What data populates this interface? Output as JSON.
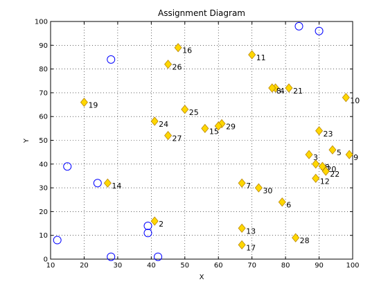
{
  "chart_data": {
    "type": "scatter",
    "title": "Assignment Diagram",
    "xlabel": "X",
    "ylabel": "Y",
    "xlim": [
      10,
      100
    ],
    "ylim": [
      0,
      100
    ],
    "xticks": [
      10,
      20,
      30,
      40,
      50,
      60,
      70,
      80,
      90,
      100
    ],
    "yticks": [
      0,
      10,
      20,
      30,
      40,
      50,
      60,
      70,
      80,
      90,
      100
    ],
    "grid": true,
    "series": [
      {
        "marker": "diamond",
        "color": "#FFD700",
        "edge_color": "#B8860B",
        "points": [
          {
            "label": "2",
            "x": 41,
            "y": 16
          },
          {
            "label": "3",
            "x": 87,
            "y": 44
          },
          {
            "label": "4",
            "x": 77,
            "y": 72
          },
          {
            "label": "5",
            "x": 94,
            "y": 46
          },
          {
            "label": "6",
            "x": 79,
            "y": 24
          },
          {
            "label": "7",
            "x": 67,
            "y": 32
          },
          {
            "label": "8",
            "x": 76,
            "y": 72
          },
          {
            "label": "9",
            "x": 99,
            "y": 44
          },
          {
            "label": "10",
            "x": 98,
            "y": 68
          },
          {
            "label": "11",
            "x": 70,
            "y": 86
          },
          {
            "label": "12",
            "x": 89,
            "y": 34
          },
          {
            "label": "13",
            "x": 67,
            "y": 13
          },
          {
            "label": "14",
            "x": 27,
            "y": 32
          },
          {
            "label": "15",
            "x": 56,
            "y": 55
          },
          {
            "label": "16",
            "x": 48,
            "y": 89
          },
          {
            "label": "17",
            "x": 67,
            "y": 6
          },
          {
            "label": "18",
            "x": 89,
            "y": 40
          },
          {
            "label": "19",
            "x": 20,
            "y": 66
          },
          {
            "label": "20",
            "x": 91,
            "y": 39
          },
          {
            "label": "21",
            "x": 81,
            "y": 72
          },
          {
            "label": "22",
            "x": 92,
            "y": 37
          },
          {
            "label": "23",
            "x": 90,
            "y": 54
          },
          {
            "label": "24",
            "x": 41,
            "y": 58
          },
          {
            "label": "25",
            "x": 50,
            "y": 63
          },
          {
            "label": "26",
            "x": 45,
            "y": 82
          },
          {
            "label": "27",
            "x": 45,
            "y": 52
          },
          {
            "label": "28",
            "x": 83,
            "y": 9
          },
          {
            "label": "29",
            "x": 61,
            "y": 57
          },
          {
            "label": "30",
            "x": 72,
            "y": 30
          },
          {
            "label": "",
            "x": 60,
            "y": 56
          }
        ]
      },
      {
        "marker": "circle",
        "color": "#0000FF",
        "points": [
          {
            "x": 12,
            "y": 8
          },
          {
            "x": 15,
            "y": 39
          },
          {
            "x": 24,
            "y": 32
          },
          {
            "x": 28,
            "y": 84
          },
          {
            "x": 28,
            "y": 1
          },
          {
            "x": 39,
            "y": 14
          },
          {
            "x": 39,
            "y": 11
          },
          {
            "x": 42,
            "y": 1
          },
          {
            "x": 84,
            "y": 98
          },
          {
            "x": 90,
            "y": 96
          }
        ]
      }
    ]
  }
}
